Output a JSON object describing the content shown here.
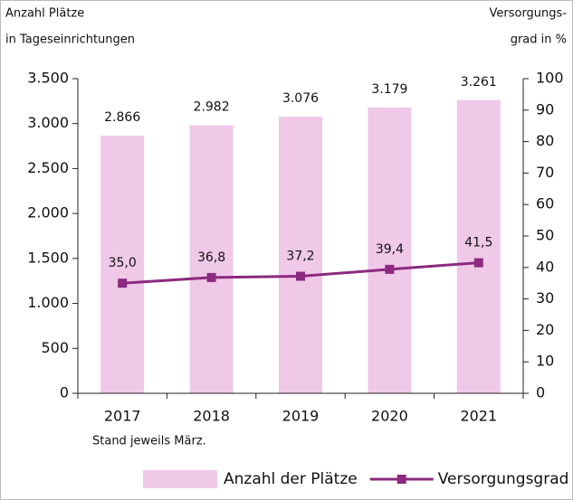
{
  "chart_data": {
    "type": "combo",
    "y_label": [
      "Anzahl Plätze",
      "in Tageseinrichtungen"
    ],
    "y2_label": [
      "Versorgungs-",
      "grad in %"
    ],
    "note": "Stand jeweils März.",
    "categories": [
      "2017",
      "2018",
      "2019",
      "2020",
      "2021"
    ],
    "series": [
      {
        "name": "Anzahl der Plätze",
        "type": "bar",
        "color": "#f0c8e8",
        "values": [
          2866,
          2982,
          3076,
          3179,
          3261
        ],
        "value_labels": [
          "2.866",
          "2.982",
          "3.076",
          "3.179",
          "3.261"
        ]
      },
      {
        "name": "Versorgungsgrad in %",
        "type": "line",
        "axis": "y2",
        "color": "#8b2a7f",
        "values": [
          35.0,
          36.8,
          37.2,
          39.4,
          41.5
        ],
        "value_labels": [
          "35,0",
          "36,8",
          "37,2",
          "39,4",
          "41,5"
        ]
      }
    ],
    "ylim": [
      0,
      3500
    ],
    "yticks": [
      0,
      500,
      {
        "value": 1000,
        "label": "1.000"
      },
      {
        "value": 1500,
        "label": "1.500"
      },
      {
        "value": 2000,
        "label": "2.000"
      },
      {
        "value": 2500,
        "label": "2.500"
      },
      {
        "value": 3000,
        "label": "3.000"
      },
      {
        "value": 3500,
        "label": "3.500"
      }
    ],
    "y2lim": [
      0,
      100
    ],
    "y2ticks": [
      0,
      10,
      20,
      30,
      40,
      50,
      60,
      70,
      80,
      90,
      100
    ],
    "legend": "bottom"
  }
}
